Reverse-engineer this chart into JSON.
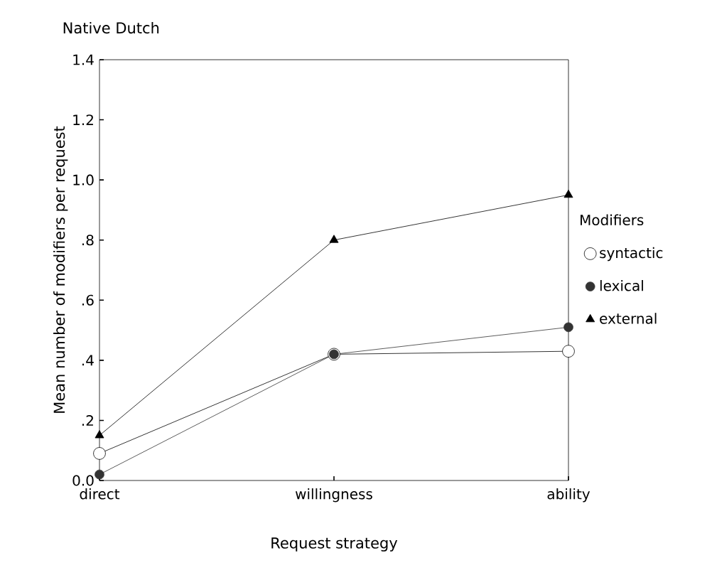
{
  "chart_data": {
    "type": "line",
    "title": "Native Dutch",
    "xlabel": "Request strategy",
    "ylabel": "Mean number of modifiers per request",
    "legend_title": "Modifiers",
    "legend": "right",
    "grid": false,
    "categories": [
      "direct",
      "willingness",
      "ability"
    ],
    "ylim": [
      0,
      1.4
    ],
    "yticks": [
      {
        "value": 0,
        "label": "0.0"
      },
      {
        "value": 0.2,
        "label": ".2"
      },
      {
        "value": 0.4,
        "label": ".4"
      },
      {
        "value": 0.6,
        "label": ".6"
      },
      {
        "value": 0.8,
        "label": ".8"
      },
      {
        "value": 1.0,
        "label": "1.0"
      },
      {
        "value": 1.2,
        "label": "1.2"
      },
      {
        "value": 1.4,
        "label": "1.4"
      }
    ],
    "series": [
      {
        "name": "syntactic",
        "color": "#000000",
        "marker": "circle",
        "values": [
          0.09,
          0.42,
          0.43
        ]
      },
      {
        "name": "lexical",
        "color": "#333333",
        "marker": "circle",
        "values": [
          0.02,
          0.42,
          0.51
        ]
      },
      {
        "name": "external",
        "color": "#000000",
        "marker": "triangle",
        "values": [
          0.15,
          0.8,
          0.95
        ]
      }
    ]
  }
}
